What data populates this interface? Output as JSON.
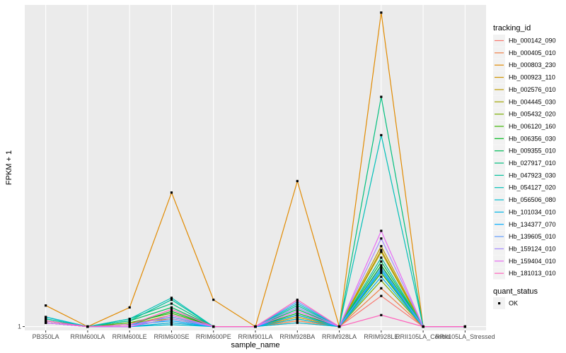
{
  "chart_data": {
    "type": "line",
    "xlabel": "sample_name",
    "ylabel": "FPKM + 1",
    "y_ticks": [
      "1"
    ],
    "categories": [
      "PB350LA",
      "RRIM600LA",
      "RRIM600LE",
      "RRIM600SE",
      "RRIM600PE",
      "RRIM901LA",
      "RRIM928BA",
      "RRIM928LA",
      "RRIM928LE",
      "RRII105LA_Control",
      "RRII105LA_Stressed"
    ],
    "ylim": [
      0.9,
      9.4
    ],
    "background": "#ebebeb",
    "grid": true,
    "legend": {
      "title": "tracking_id",
      "position": "right"
    },
    "point_legend": {
      "title": "quant_status",
      "items": [
        "OK"
      ]
    },
    "series": [
      {
        "name": "Hb_000142_090",
        "color": "#F8766D",
        "values": [
          1.1,
          1.0,
          1.0,
          1.2,
          1.0,
          1.0,
          1.1,
          1.0,
          1.8,
          1.0,
          1.0
        ]
      },
      {
        "name": "Hb_000405_010",
        "color": "#EF7F46",
        "values": [
          1.1,
          1.0,
          1.0,
          1.1,
          1.0,
          1.0,
          1.15,
          1.0,
          2.0,
          1.0,
          1.0
        ]
      },
      {
        "name": "Hb_000803_230",
        "color": "#E18A00",
        "values": [
          1.55,
          1.0,
          1.5,
          4.5,
          1.7,
          1.0,
          4.8,
          1.0,
          9.2,
          1.0,
          1.0
        ]
      },
      {
        "name": "Hb_000923_110",
        "color": "#CF9400",
        "values": [
          1.1,
          1.0,
          1.1,
          1.2,
          1.0,
          1.0,
          1.25,
          1.0,
          3.0,
          1.0,
          1.0
        ]
      },
      {
        "name": "Hb_002576_010",
        "color": "#BE9C00",
        "values": [
          1.1,
          1.0,
          1.05,
          1.3,
          1.0,
          1.0,
          1.3,
          1.0,
          3.1,
          1.0,
          1.0
        ]
      },
      {
        "name": "Hb_004445_030",
        "color": "#A3A500",
        "values": [
          1.1,
          1.0,
          1.05,
          1.25,
          1.0,
          1.0,
          1.2,
          1.0,
          2.95,
          1.0,
          1.0
        ]
      },
      {
        "name": "Hb_005432_020",
        "color": "#7CAE00",
        "values": [
          1.1,
          1.0,
          1.0,
          1.2,
          1.0,
          1.0,
          1.2,
          1.0,
          2.2,
          1.0,
          1.0
        ]
      },
      {
        "name": "Hb_006120_160",
        "color": "#3BB300",
        "values": [
          1.15,
          1.0,
          1.1,
          1.35,
          1.0,
          1.0,
          1.3,
          1.0,
          2.4,
          1.0,
          1.0
        ]
      },
      {
        "name": "Hb_006356_030",
        "color": "#00B81F",
        "values": [
          1.1,
          1.0,
          1.05,
          1.4,
          1.0,
          1.0,
          1.35,
          1.0,
          2.6,
          1.0,
          1.0
        ]
      },
      {
        "name": "Hb_009355_010",
        "color": "#00BC59",
        "values": [
          1.15,
          1.0,
          1.15,
          1.5,
          1.0,
          1.0,
          1.45,
          1.0,
          2.7,
          1.0,
          1.0
        ]
      },
      {
        "name": "Hb_027917_010",
        "color": "#00BF7D",
        "values": [
          1.2,
          1.0,
          1.2,
          1.6,
          1.0,
          1.0,
          1.5,
          1.0,
          7.0,
          1.0,
          1.0
        ]
      },
      {
        "name": "Hb_047923_030",
        "color": "#00C19C",
        "values": [
          1.2,
          1.0,
          1.15,
          1.7,
          1.0,
          1.0,
          1.55,
          1.0,
          2.8,
          1.0,
          1.0
        ]
      },
      {
        "name": "Hb_054127_020",
        "color": "#00C0B8",
        "values": [
          1.25,
          1.0,
          1.2,
          1.75,
          1.0,
          1.0,
          1.6,
          1.0,
          6.0,
          1.0,
          1.0
        ]
      },
      {
        "name": "Hb_056506_080",
        "color": "#00BDD0",
        "values": [
          1.25,
          1.0,
          1.0,
          1.05,
          1.0,
          1.0,
          1.1,
          1.0,
          2.5,
          1.0,
          1.0
        ]
      },
      {
        "name": "Hb_101034_010",
        "color": "#00B5E6",
        "values": [
          1.1,
          1.0,
          1.0,
          1.1,
          1.0,
          1.0,
          1.2,
          1.0,
          2.3,
          1.0,
          1.0
        ]
      },
      {
        "name": "Hb_134377_070",
        "color": "#00ABFD",
        "values": [
          1.1,
          1.0,
          1.05,
          1.15,
          1.0,
          1.0,
          1.3,
          1.0,
          2.45,
          1.0,
          1.0
        ]
      },
      {
        "name": "Hb_139605_010",
        "color": "#619CFF",
        "values": [
          1.1,
          1.0,
          1.05,
          1.25,
          1.0,
          1.0,
          1.65,
          1.0,
          2.55,
          1.0,
          1.0
        ]
      },
      {
        "name": "Hb_159124_010",
        "color": "#A58AFF",
        "values": [
          1.1,
          1.0,
          1.0,
          1.2,
          1.0,
          1.0,
          1.5,
          1.0,
          3.3,
          1.0,
          1.0
        ]
      },
      {
        "name": "Hb_159404_010",
        "color": "#E76BF3",
        "values": [
          1.1,
          1.0,
          1.0,
          1.3,
          1.0,
          1.0,
          1.4,
          1.0,
          3.5,
          1.0,
          1.0
        ]
      },
      {
        "name": "Hb_181013_010",
        "color": "#FF62BC",
        "values": [
          1.15,
          1.0,
          1.05,
          1.45,
          1.0,
          1.0,
          1.7,
          1.0,
          1.3,
          1.0,
          1.0
        ]
      }
    ]
  }
}
